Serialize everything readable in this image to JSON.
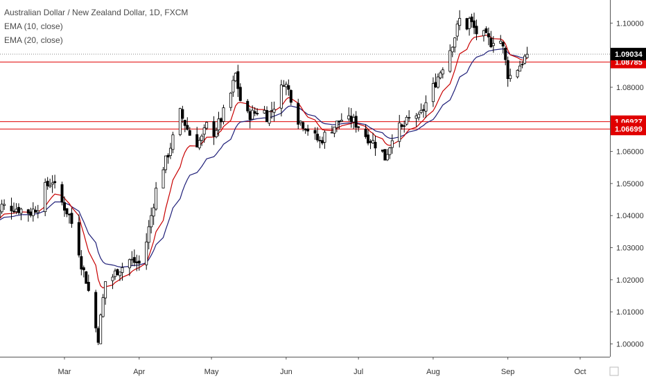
{
  "header": {
    "title": "Australian Dollar / New Zealand Dollar, 1D, FXCM",
    "indicator1": "EMA (10, close)",
    "indicator2": "EMA (20, close)"
  },
  "colors": {
    "up_candle": "#ffffff",
    "down_candle": "#000000",
    "ema10": "#c80000",
    "ema20": "#1e1e78",
    "level_line": "#e00000",
    "current_label_bg": "#000000",
    "level_label_bg": "#e00000"
  },
  "chart_data": {
    "type": "candlestick",
    "title": "Australian Dollar / New Zealand Dollar, 1D, FXCM",
    "y_range": [
      0.996,
      1.1072
    ],
    "y_ticks": [
      "1.10000",
      "1.09000",
      "1.08000",
      "1.07000",
      "1.06000",
      "1.05000",
      "1.04000",
      "1.03000",
      "1.02000",
      "1.01000",
      "1.00000"
    ],
    "y_tick_values": [
      1.1,
      1.09,
      1.08,
      1.07,
      1.06,
      1.05,
      1.04,
      1.03,
      1.02,
      1.01,
      1.0
    ],
    "x_ticks": [
      "Mar",
      "Apr",
      "May",
      "Jun",
      "Jul",
      "Aug",
      "Sep",
      "Oct"
    ],
    "x_tick_days": [
      31,
      62,
      92,
      123,
      153,
      184,
      215,
      245
    ],
    "start_date": "2020-02-01",
    "current_price": "1.09034",
    "horizontal_levels": [
      "1.08785",
      "1.06927",
      "1.06699"
    ],
    "keypoints": [
      [
        1,
        1.0365
      ],
      [
        5,
        1.043
      ],
      [
        10,
        1.0425
      ],
      [
        17,
        1.041
      ],
      [
        20,
        1.043
      ],
      [
        22,
        1.048
      ],
      [
        26,
        1.051
      ],
      [
        28,
        1.0465
      ],
      [
        30,
        1.044
      ],
      [
        33,
        1.04
      ],
      [
        36,
        1.033
      ],
      [
        38,
        1.025
      ],
      [
        40,
        1.02
      ],
      [
        42,
        1.013
      ],
      [
        44,
        1.005
      ],
      [
        45,
        1.002
      ],
      [
        47,
        1.014
      ],
      [
        49,
        1.025
      ],
      [
        51,
        1.021
      ],
      [
        53,
        1.023
      ],
      [
        55,
        1.024
      ],
      [
        57,
        1.0265
      ],
      [
        60,
        1.0255
      ],
      [
        62,
        1.025
      ],
      [
        65,
        1.032
      ],
      [
        68,
        1.044
      ],
      [
        70,
        1.052
      ],
      [
        73,
        1.057
      ],
      [
        76,
        1.064
      ],
      [
        79,
        1.072
      ],
      [
        82,
        1.067
      ],
      [
        85,
        1.062
      ],
      [
        88,
        1.064
      ],
      [
        90,
        1.068
      ],
      [
        93,
        1.066
      ],
      [
        96,
        1.07
      ],
      [
        100,
        1.078
      ],
      [
        102,
        1.084
      ],
      [
        104,
        1.076
      ],
      [
        106,
        1.071
      ],
      [
        110,
        1.072
      ],
      [
        113,
        1.074
      ],
      [
        115,
        1.071
      ],
      [
        117,
        1.073
      ],
      [
        120,
        1.077
      ],
      [
        122,
        1.082
      ],
      [
        124,
        1.079
      ],
      [
        126,
        1.075
      ],
      [
        128,
        1.07
      ],
      [
        131,
        1.068
      ],
      [
        134,
        1.065
      ],
      [
        137,
        1.063
      ],
      [
        140,
        1.066
      ],
      [
        143,
        1.068
      ],
      [
        146,
        1.07
      ],
      [
        148,
        1.069
      ],
      [
        150,
        1.07
      ],
      [
        153,
        1.068
      ],
      [
        156,
        1.065
      ],
      [
        159,
        1.063
      ],
      [
        162,
        1.061
      ],
      [
        164,
        1.058
      ],
      [
        166,
        1.062
      ],
      [
        168,
        1.068
      ],
      [
        171,
        1.067
      ],
      [
        174,
        1.07
      ],
      [
        176,
        1.073
      ],
      [
        178,
        1.07
      ],
      [
        181,
        1.075
      ],
      [
        184,
        1.08
      ],
      [
        187,
        1.085
      ],
      [
        190,
        1.09
      ],
      [
        193,
        1.096
      ],
      [
        195,
        1.101
      ],
      [
        197,
        1.097
      ],
      [
        199,
        1.101
      ],
      [
        202,
        1.097
      ],
      [
        205,
        1.096
      ],
      [
        208,
        1.094
      ],
      [
        211,
        1.097
      ],
      [
        213,
        1.092
      ],
      [
        215,
        1.084
      ],
      [
        217,
        1.083
      ],
      [
        219,
        1.086
      ],
      [
        221,
        1.088
      ],
      [
        223,
        1.0903
      ]
    ]
  },
  "x_axis_labels": [
    "Mar",
    "Apr",
    "May",
    "Jun",
    "Jul",
    "Aug",
    "Sep",
    "Oct"
  ]
}
